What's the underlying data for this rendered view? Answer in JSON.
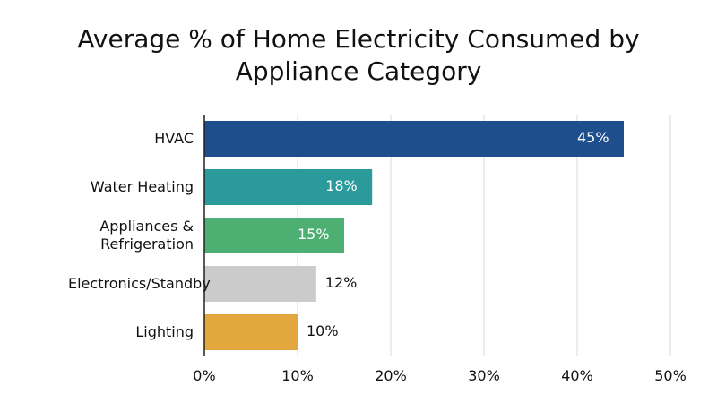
{
  "chart_data": {
    "type": "hbar",
    "title": "Average % of Home Electricity Consumed by Appliance Category",
    "categories": [
      "HVAC",
      "Water Heating",
      "Appliances & Refrigeration",
      "Electronics/Standby",
      "Lighting"
    ],
    "values": [
      45,
      18,
      15,
      12,
      10
    ],
    "value_labels": [
      "45%",
      "18%",
      "15%",
      "12%",
      "10%"
    ],
    "colors": [
      "#1f4e8c",
      "#2a9a9b",
      "#4db072",
      "#cbcbcb",
      "#e3a83d"
    ],
    "xlim": [
      0,
      50
    ],
    "xticks": [
      {
        "value": 0,
        "label": "0%"
      },
      {
        "value": 10,
        "label": "10%"
      },
      {
        "value": 20,
        "label": "20%"
      },
      {
        "value": 30,
        "label": "30%"
      },
      {
        "value": 40,
        "label": "40%"
      },
      {
        "value": 50,
        "label": "50%"
      }
    ],
    "grid": true
  }
}
